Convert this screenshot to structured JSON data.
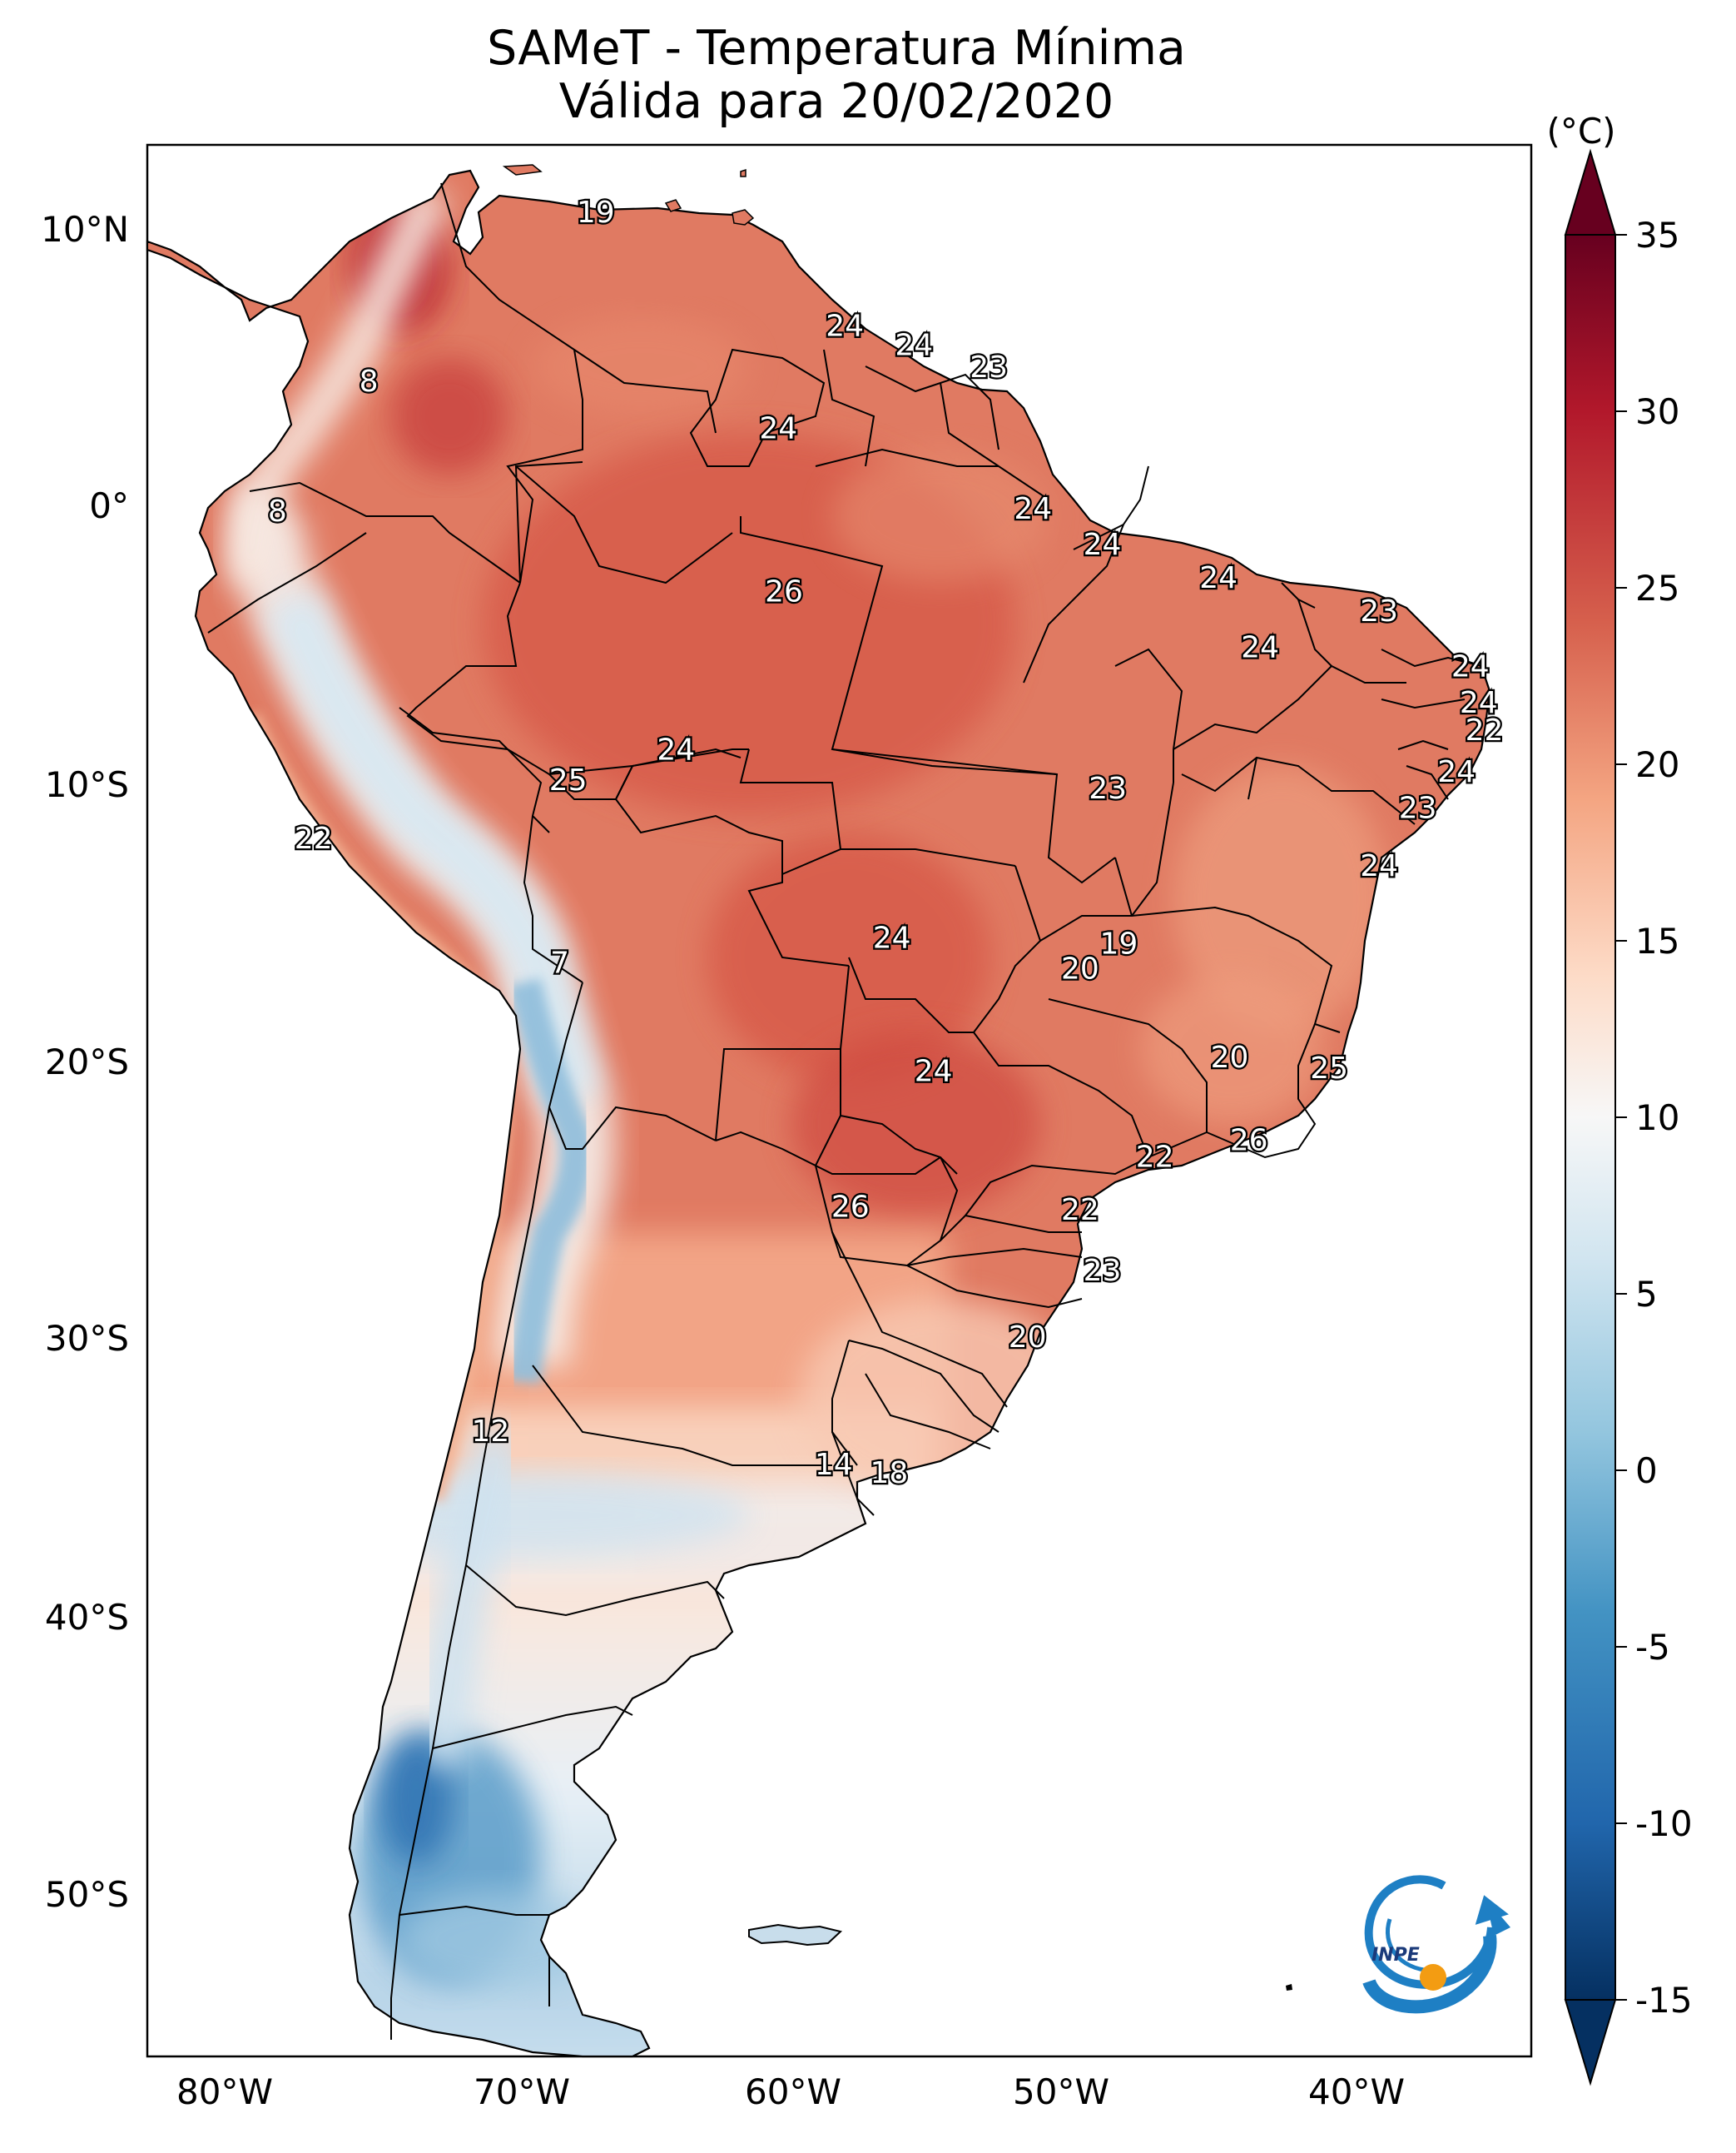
{
  "title": {
    "line1": "SAMeT - Temperatura Mínima",
    "line2": "Válida para 20/02/2020"
  },
  "colorbar": {
    "unit": "(°C)",
    "ticks": [
      "35",
      "30",
      "25",
      "20",
      "15",
      "10",
      "5",
      "0",
      "-5",
      "-10",
      "-15"
    ],
    "range": [
      -15,
      35
    ],
    "colormap": "RdBu_r",
    "extend": "both"
  },
  "axes": {
    "lon_labels": [
      "80°W",
      "70°W",
      "60°W",
      "50°W",
      "40°W"
    ],
    "lat_labels": [
      "10°N",
      "0°",
      "10°S",
      "20°S",
      "30°S",
      "40°S",
      "50°S"
    ],
    "lon_range": [
      -83,
      -33
    ],
    "lat_range": [
      -56,
      13
    ]
  },
  "station_labels": [
    {
      "lon": -66.8,
      "lat": 10.6,
      "value": "19"
    },
    {
      "lon": -57.8,
      "lat": 6.5,
      "value": "24"
    },
    {
      "lon": -55.3,
      "lat": 5.8,
      "value": "24"
    },
    {
      "lon": -52.6,
      "lat": 5.0,
      "value": "23"
    },
    {
      "lon": -75.0,
      "lat": 4.5,
      "value": "8"
    },
    {
      "lon": -60.2,
      "lat": 2.8,
      "value": "24"
    },
    {
      "lon": -78.3,
      "lat": -0.2,
      "value": "8"
    },
    {
      "lon": -51.0,
      "lat": -0.1,
      "value": "24"
    },
    {
      "lon": -48.5,
      "lat": -1.4,
      "value": "24"
    },
    {
      "lon": -44.3,
      "lat": -2.6,
      "value": "24"
    },
    {
      "lon": -38.5,
      "lat": -3.8,
      "value": "23"
    },
    {
      "lon": -60.0,
      "lat": -3.1,
      "value": "26"
    },
    {
      "lon": -42.8,
      "lat": -5.1,
      "value": "24"
    },
    {
      "lon": -35.2,
      "lat": -5.8,
      "value": "24"
    },
    {
      "lon": -34.9,
      "lat": -7.1,
      "value": "24"
    },
    {
      "lon": -34.7,
      "lat": -8.1,
      "value": "22"
    },
    {
      "lon": -35.7,
      "lat": -9.6,
      "value": "24"
    },
    {
      "lon": -37.1,
      "lat": -10.9,
      "value": "23"
    },
    {
      "lon": -48.3,
      "lat": -10.2,
      "value": "23"
    },
    {
      "lon": -63.9,
      "lat": -8.8,
      "value": "24"
    },
    {
      "lon": -67.8,
      "lat": -9.9,
      "value": "25"
    },
    {
      "lon": -77.0,
      "lat": -12.0,
      "value": "22"
    },
    {
      "lon": -38.5,
      "lat": -13.0,
      "value": "24"
    },
    {
      "lon": -47.9,
      "lat": -15.8,
      "value": "19"
    },
    {
      "lon": -49.3,
      "lat": -16.7,
      "value": "20"
    },
    {
      "lon": -56.1,
      "lat": -15.6,
      "value": "24"
    },
    {
      "lon": -68.1,
      "lat": -16.5,
      "value": "7"
    },
    {
      "lon": -43.9,
      "lat": -19.9,
      "value": "20"
    },
    {
      "lon": -40.3,
      "lat": -20.3,
      "value": "25"
    },
    {
      "lon": -54.6,
      "lat": -20.4,
      "value": "24"
    },
    {
      "lon": -43.2,
      "lat": -22.9,
      "value": "26"
    },
    {
      "lon": -46.6,
      "lat": -23.5,
      "value": "22"
    },
    {
      "lon": -49.3,
      "lat": -25.4,
      "value": "22"
    },
    {
      "lon": -57.6,
      "lat": -25.3,
      "value": "26"
    },
    {
      "lon": -48.5,
      "lat": -27.6,
      "value": "23"
    },
    {
      "lon": -51.2,
      "lat": -30.0,
      "value": "20"
    },
    {
      "lon": -70.6,
      "lat": -33.4,
      "value": "12"
    },
    {
      "lon": -58.2,
      "lat": -34.6,
      "value": "14"
    },
    {
      "lon": -56.2,
      "lat": -34.9,
      "value": "18"
    }
  ],
  "logo_text": "INPE"
}
